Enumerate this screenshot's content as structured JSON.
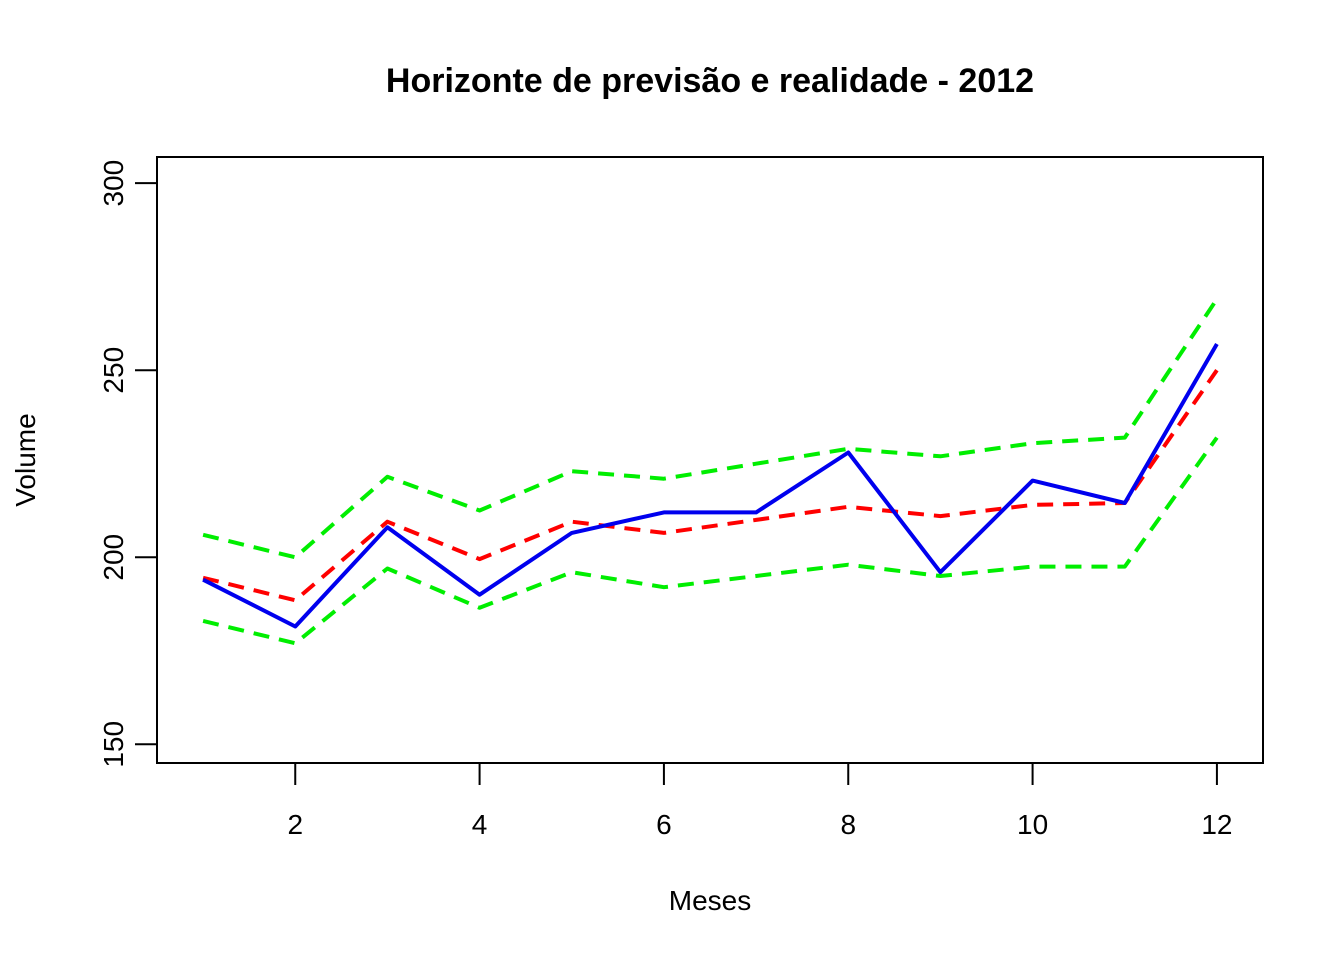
{
  "chart_data": {
    "type": "line",
    "title": "Horizonte de previsão e realidade - 2012",
    "xlabel": "Meses",
    "ylabel": "Volume",
    "xlim": [
      0.5,
      12.5
    ],
    "ylim": [
      145,
      307
    ],
    "x_ticks": [
      2,
      4,
      6,
      8,
      10,
      12
    ],
    "y_ticks": [
      150,
      200,
      250,
      300
    ],
    "x_tick_labels": [
      "2",
      "4",
      "6",
      "8",
      "10",
      "12"
    ],
    "y_tick_labels": [
      "150",
      "200",
      "250",
      "300"
    ],
    "grid": false,
    "legend": false,
    "x": [
      1,
      2,
      3,
      4,
      5,
      6,
      7,
      8,
      9,
      10,
      11,
      12
    ],
    "series": [
      {
        "color": "#00ee00",
        "style": "dashed",
        "values": [
          183,
          177,
          197,
          186.5,
          196,
          192,
          195,
          198,
          195,
          197.5,
          197.5,
          232
        ]
      },
      {
        "color": "#00ee00",
        "style": "dashed",
        "values": [
          206,
          200,
          221.5,
          212.5,
          223,
          221,
          225,
          229,
          227,
          230.5,
          232,
          269
        ]
      },
      {
        "color": "#ff0000",
        "style": "dashed",
        "values": [
          194.5,
          188.5,
          209.5,
          199.5,
          209.5,
          206.5,
          210,
          213.5,
          211,
          214,
          214.5,
          250
        ]
      },
      {
        "color": "#0000ee",
        "style": "solid",
        "values": [
          194,
          181.5,
          208,
          190,
          206.5,
          212,
          212,
          228,
          196,
          220.5,
          214.5,
          257
        ]
      }
    ]
  }
}
